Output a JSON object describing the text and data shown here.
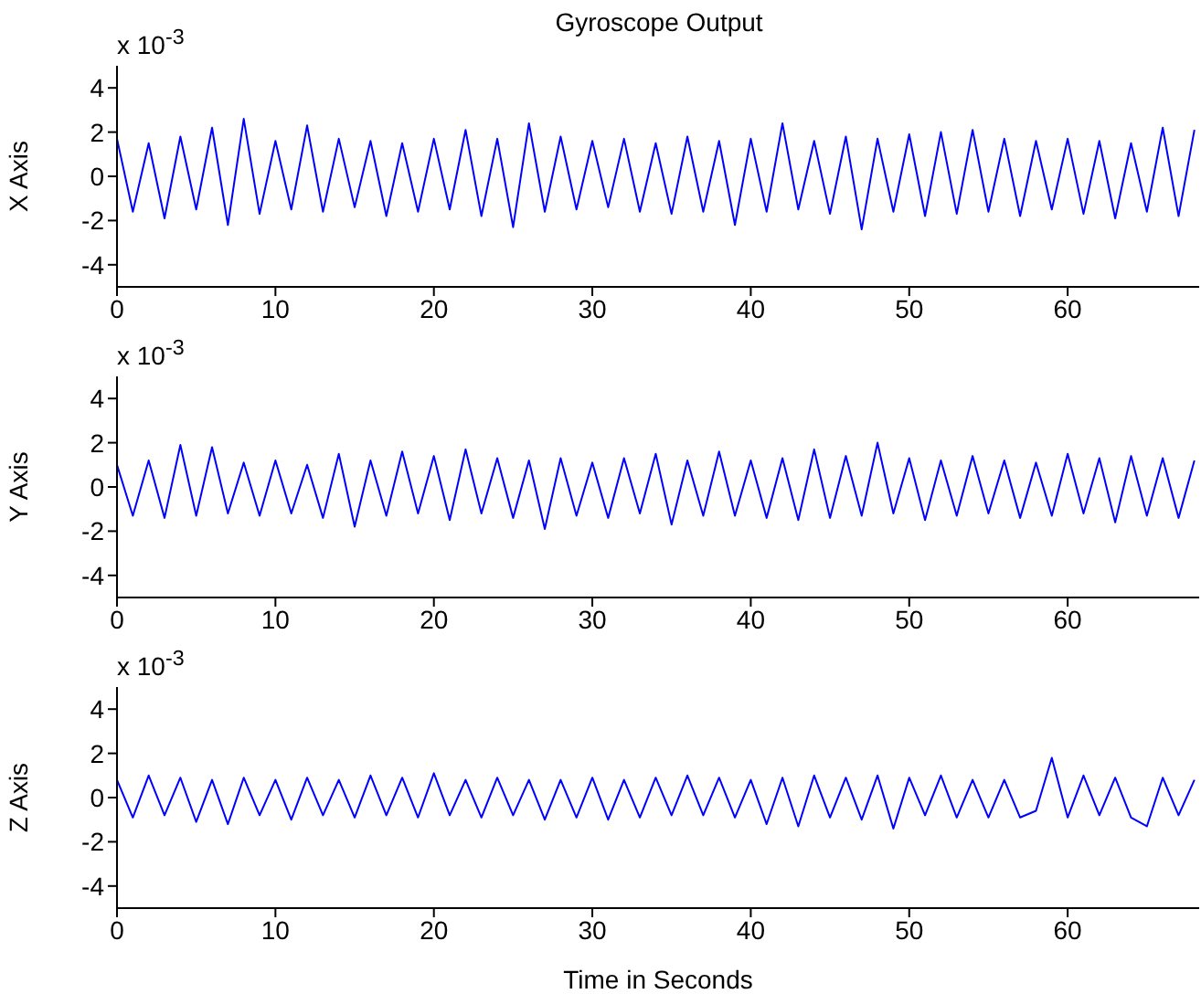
{
  "chart_data": [
    {
      "type": "line",
      "title": "Gyroscope Output",
      "ylabel": "X Axis",
      "annotations": [
        "x 10$^{-3}$"
      ],
      "color": "#0000ff",
      "x": [
        0,
        1,
        2,
        3,
        4,
        5,
        6,
        7,
        8,
        9,
        10,
        11,
        12,
        13,
        14,
        15,
        16,
        17,
        18,
        19,
        20,
        21,
        22,
        23,
        24,
        25,
        26,
        27,
        28,
        29,
        30,
        31,
        32,
        33,
        34,
        35,
        36,
        37,
        38,
        39,
        40,
        41,
        42,
        43,
        44,
        45,
        46,
        47,
        48,
        49,
        50,
        51,
        52,
        53,
        54,
        55,
        56,
        57,
        58,
        59,
        60,
        61,
        62,
        63,
        64,
        65,
        66,
        67,
        68
      ],
      "values": [
        1.7,
        -1.6,
        1.5,
        -1.9,
        1.8,
        -1.5,
        2.2,
        -2.2,
        2.6,
        -1.7,
        1.6,
        -1.5,
        2.3,
        -1.6,
        1.7,
        -1.4,
        1.6,
        -1.8,
        1.5,
        -1.6,
        1.7,
        -1.5,
        2.1,
        -1.8,
        1.7,
        -2.3,
        2.4,
        -1.6,
        1.8,
        -1.5,
        1.6,
        -1.4,
        1.7,
        -1.6,
        1.5,
        -1.7,
        1.8,
        -1.6,
        1.6,
        -2.2,
        1.7,
        -1.6,
        2.4,
        -1.5,
        1.6,
        -1.7,
        1.8,
        -2.4,
        1.7,
        -1.6,
        1.9,
        -1.8,
        2.0,
        -1.7,
        2.1,
        -1.6,
        1.7,
        -1.8,
        1.6,
        -1.5,
        1.7,
        -1.7,
        1.6,
        -1.9,
        1.5,
        -1.6,
        2.2,
        -1.8,
        2.1
      ],
      "xlim": [
        0,
        68.3
      ],
      "xticks": [
        0,
        10,
        20,
        30,
        40,
        50,
        60
      ],
      "ylim": [
        -5,
        5
      ],
      "yticks": [
        -4,
        -2,
        0,
        2,
        4
      ]
    },
    {
      "type": "line",
      "ylabel": "Y Axis",
      "annotations": [
        "x 10$^{-3}$"
      ],
      "color": "#0000ff",
      "x": [
        0,
        1,
        2,
        3,
        4,
        5,
        6,
        7,
        8,
        9,
        10,
        11,
        12,
        13,
        14,
        15,
        16,
        17,
        18,
        19,
        20,
        21,
        22,
        23,
        24,
        25,
        26,
        27,
        28,
        29,
        30,
        31,
        32,
        33,
        34,
        35,
        36,
        37,
        38,
        39,
        40,
        41,
        42,
        43,
        44,
        45,
        46,
        47,
        48,
        49,
        50,
        51,
        52,
        53,
        54,
        55,
        56,
        57,
        58,
        59,
        60,
        61,
        62,
        63,
        64,
        65,
        66,
        67,
        68
      ],
      "values": [
        1.0,
        -1.3,
        1.2,
        -1.4,
        1.9,
        -1.3,
        1.8,
        -1.2,
        1.1,
        -1.3,
        1.2,
        -1.2,
        1.0,
        -1.4,
        1.5,
        -1.8,
        1.2,
        -1.3,
        1.6,
        -1.2,
        1.4,
        -1.5,
        1.7,
        -1.2,
        1.3,
        -1.4,
        1.2,
        -1.9,
        1.3,
        -1.3,
        1.1,
        -1.4,
        1.3,
        -1.2,
        1.5,
        -1.7,
        1.2,
        -1.3,
        1.6,
        -1.3,
        1.2,
        -1.4,
        1.3,
        -1.5,
        1.7,
        -1.4,
        1.4,
        -1.3,
        2.0,
        -1.2,
        1.3,
        -1.5,
        1.2,
        -1.3,
        1.4,
        -1.2,
        1.2,
        -1.4,
        1.1,
        -1.3,
        1.5,
        -1.2,
        1.3,
        -1.6,
        1.4,
        -1.3,
        1.3,
        -1.4,
        1.2
      ],
      "xlim": [
        0,
        68.3
      ],
      "xticks": [
        0,
        10,
        20,
        30,
        40,
        50,
        60
      ],
      "ylim": [
        -5,
        5
      ],
      "yticks": [
        -4,
        -2,
        0,
        2,
        4
      ]
    },
    {
      "type": "line",
      "ylabel": "Z Axis",
      "xlabel": "Time in Seconds",
      "annotations": [
        "x 10$^{-3}$"
      ],
      "color": "#0000ff",
      "x": [
        0,
        1,
        2,
        3,
        4,
        5,
        6,
        7,
        8,
        9,
        10,
        11,
        12,
        13,
        14,
        15,
        16,
        17,
        18,
        19,
        20,
        21,
        22,
        23,
        24,
        25,
        26,
        27,
        28,
        29,
        30,
        31,
        32,
        33,
        34,
        35,
        36,
        37,
        38,
        39,
        40,
        41,
        42,
        43,
        44,
        45,
        46,
        47,
        48,
        49,
        50,
        51,
        52,
        53,
        54,
        55,
        56,
        57,
        58,
        59,
        60,
        61,
        62,
        63,
        64,
        65,
        66,
        67,
        68
      ],
      "values": [
        0.8,
        -0.9,
        1.0,
        -0.8,
        0.9,
        -1.1,
        0.8,
        -1.2,
        0.9,
        -0.8,
        0.8,
        -1.0,
        0.9,
        -0.8,
        0.8,
        -0.9,
        1.0,
        -0.8,
        0.9,
        -0.9,
        1.1,
        -0.8,
        0.8,
        -0.9,
        0.9,
        -0.8,
        0.8,
        -1.0,
        0.8,
        -0.9,
        0.9,
        -1.0,
        0.8,
        -0.9,
        0.9,
        -0.8,
        1.0,
        -0.8,
        0.9,
        -0.9,
        0.8,
        -1.2,
        0.9,
        -1.3,
        1.0,
        -0.9,
        0.9,
        -1.0,
        1.0,
        -1.4,
        0.9,
        -0.8,
        1.0,
        -0.9,
        0.8,
        -0.9,
        0.8,
        -0.9,
        -0.6,
        1.8,
        -0.9,
        1.0,
        -0.8,
        0.9,
        -0.9,
        -1.3,
        0.9,
        -0.8,
        0.8
      ],
      "xlim": [
        0,
        68.3
      ],
      "xticks": [
        0,
        10,
        20,
        30,
        40,
        50,
        60
      ],
      "ylim": [
        -5,
        5
      ],
      "yticks": [
        -4,
        -2,
        0,
        2,
        4
      ]
    }
  ]
}
